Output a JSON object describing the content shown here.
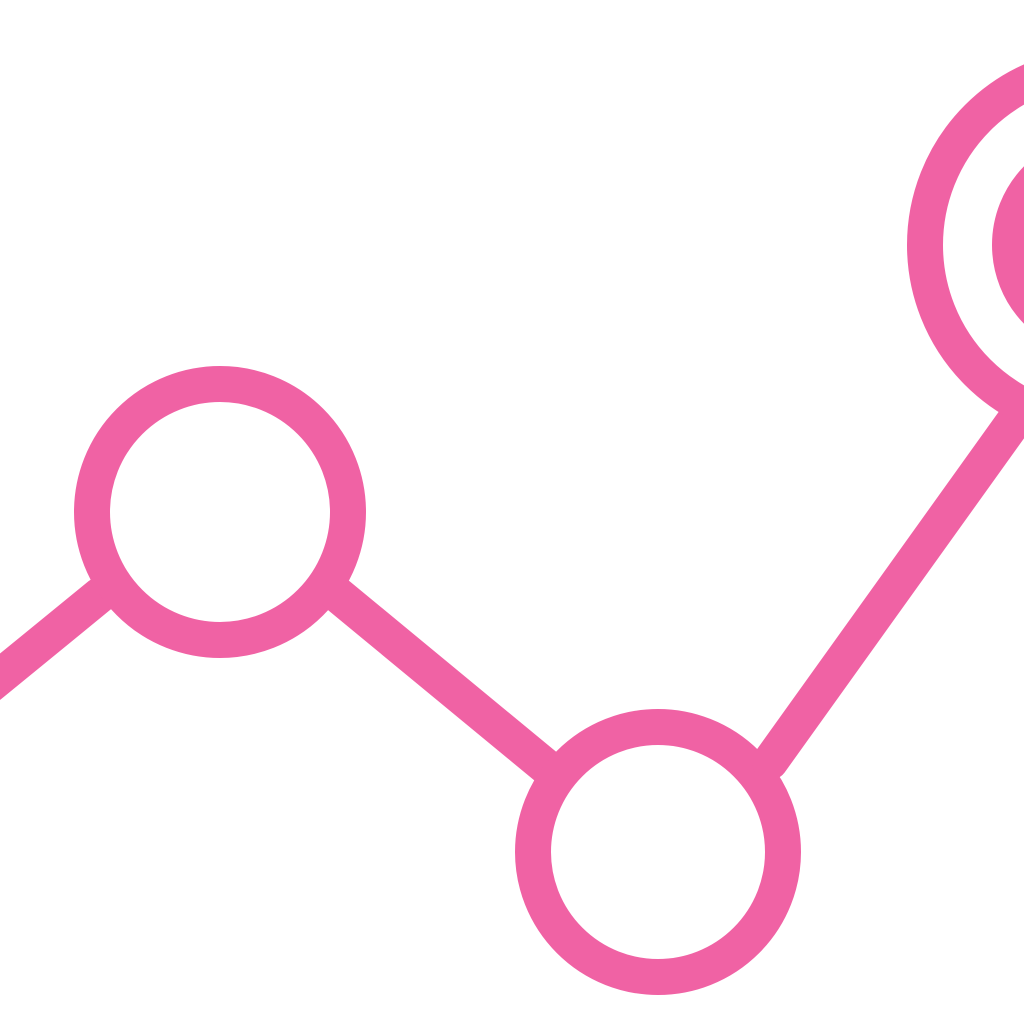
{
  "icon": {
    "name": "line-chart-nodes-icon",
    "stroke_color": "#F062A4",
    "background_color": "#FFFFFF"
  }
}
